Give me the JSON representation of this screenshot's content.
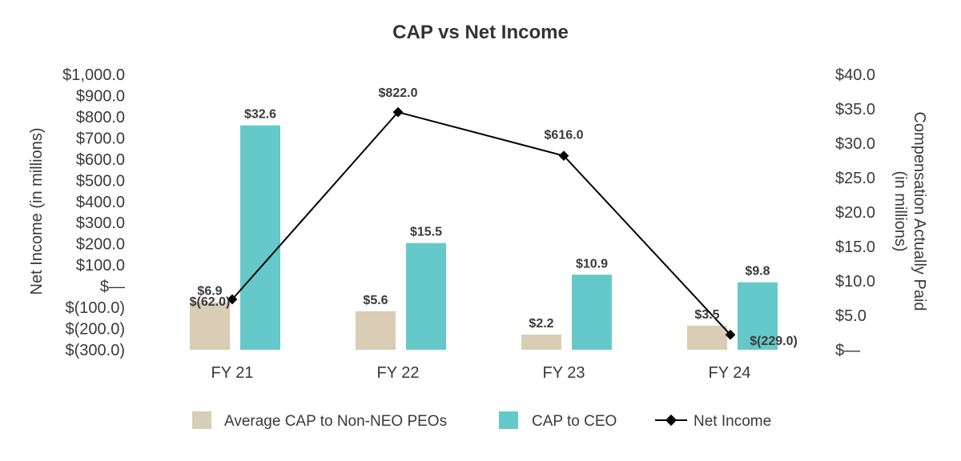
{
  "chart_data": {
    "type": "bar",
    "title": "CAP vs Net Income",
    "categories": [
      "FY 21",
      "FY 22",
      "FY 23",
      "FY 24"
    ],
    "left_axis": {
      "label": "Net Income (in millions)",
      "range": [
        -300,
        1000
      ],
      "ticks": [
        "$1,000.0",
        "$900.0",
        "$800.0",
        "$700.0",
        "$600.0",
        "$500.0",
        "$400.0",
        "$300.0",
        "$200.0",
        "$100.0",
        "$—",
        "$(100.0)",
        "$(200.0)",
        "$(300.0)"
      ]
    },
    "right_axis": {
      "label_line1": "Compensation Actually Paid",
      "label_line2": "(in millions)",
      "range": [
        0,
        40
      ],
      "ticks": [
        "$40.0",
        "$35.0",
        "$30.0",
        "$25.0",
        "$20.0",
        "$15.0",
        "$10.0",
        "$5.0",
        "$—"
      ]
    },
    "series": [
      {
        "name": "Average CAP to Non-NEO PEOs",
        "type": "bar",
        "axis": "right",
        "color": "#d9cdb6",
        "values": [
          6.9,
          5.6,
          2.2,
          3.5
        ],
        "labels": [
          "$6.9",
          "$5.6",
          "$2.2",
          "$3.5"
        ]
      },
      {
        "name": "CAP to CEO",
        "type": "bar",
        "axis": "right",
        "color": "#66c9c9",
        "values": [
          32.6,
          15.5,
          10.9,
          9.8
        ],
        "labels": [
          "$32.6",
          "$15.5",
          "$10.9",
          "$9.8"
        ]
      },
      {
        "name": "Net Income",
        "type": "line",
        "axis": "left",
        "color": "#000000",
        "values": [
          -62.0,
          822.0,
          616.0,
          -229.0
        ],
        "labels": [
          "$(62.0)",
          "$822.0",
          "$616.0",
          "$(229.0)"
        ]
      }
    ],
    "legend": [
      "Average CAP to Non-NEO PEOs",
      "CAP to CEO",
      "Net Income"
    ],
    "legend_position": "bottom"
  }
}
